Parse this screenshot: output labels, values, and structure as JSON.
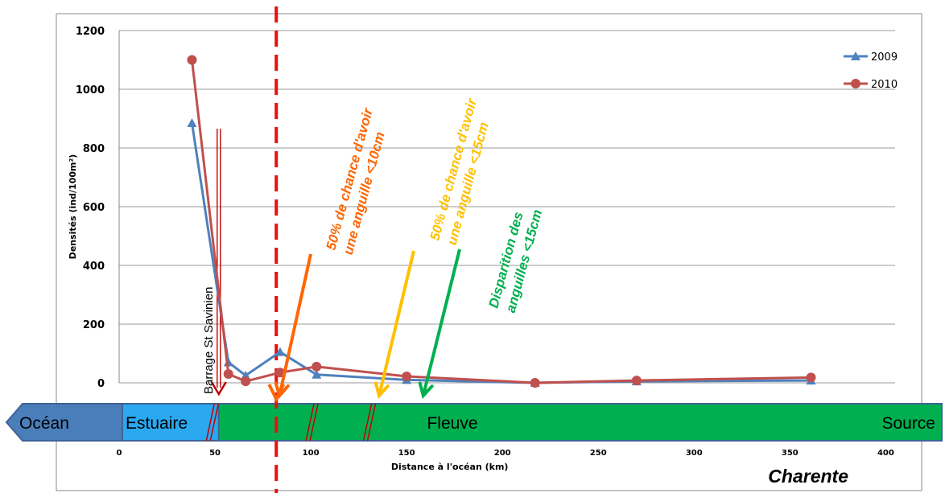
{
  "chart_data": {
    "type": "line",
    "xlabel": "Distance à l'océan (km)",
    "ylabel": "Densités (ind/100m²)",
    "xlim": [
      0,
      420
    ],
    "ylim": [
      0,
      1200
    ],
    "x_ticks": [
      0,
      50,
      100,
      150,
      200,
      250,
      300,
      350,
      400
    ],
    "y_ticks": [
      0,
      200,
      400,
      600,
      800,
      1000,
      1200
    ],
    "grid": "horizontal",
    "legend_position": "top-right",
    "series": [
      {
        "name": "2009",
        "color": "#4F81BD",
        "marker": "triangle",
        "x": [
          38,
          57,
          66,
          84,
          103,
          150,
          217,
          270,
          361
        ],
        "y": [
          885,
          70,
          25,
          105,
          28,
          10,
          0,
          5,
          8
        ]
      },
      {
        "name": "2010",
        "color": "#C0504D",
        "marker": "circle",
        "x": [
          38,
          57,
          66,
          84,
          103,
          150,
          217,
          270,
          361
        ],
        "y": [
          1100,
          30,
          5,
          35,
          55,
          22,
          0,
          8,
          18
        ]
      }
    ],
    "annotations": [
      {
        "text_lines": [
          "50% de chance d'avoir",
          "une anguille <10cm"
        ],
        "color": "#FF6600",
        "arrow_to_x": 82
      },
      {
        "text_lines": [
          "50% de chance d'avoir",
          "une anguille <15cm"
        ],
        "color": "#FFC000",
        "arrow_to_x": 134
      },
      {
        "text_lines": [
          "Disparition des",
          "anguilles <15cm"
        ],
        "color": "#00B050",
        "arrow_to_x": 157
      }
    ],
    "dam_label": "Barrage St Savinien",
    "dam_x": 52,
    "limit_line_x": 82
  },
  "bands": {
    "ocean": "Océan",
    "estuaire": "Estuaire",
    "fleuve": "Fleuve",
    "source": "Source"
  },
  "river_name": "Charente",
  "colors": {
    "ocean": "#4A7EBB",
    "estuaire": "#2AA8F0",
    "fleuve": "#00B050",
    "band_border": "#3F6396",
    "limit_line": "#E8100C"
  }
}
